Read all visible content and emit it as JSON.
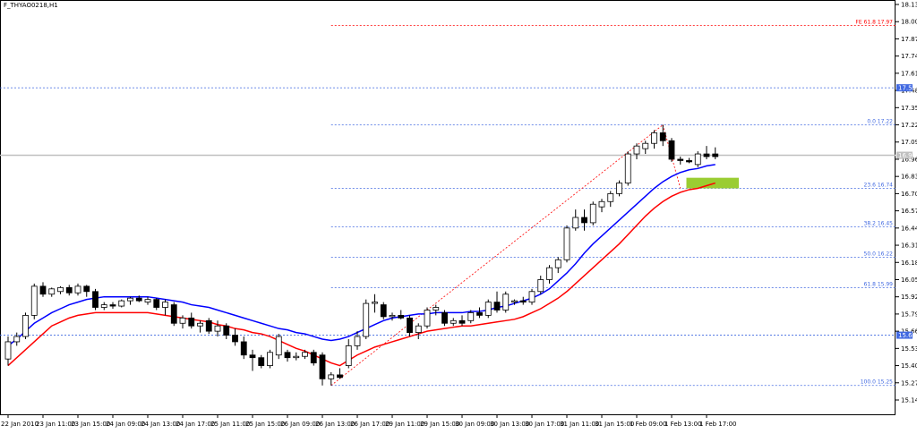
{
  "chart_data": {
    "type": "candlestick",
    "title": "F_THYAO0218,H1",
    "categories": [
      "22 Jan 2010",
      null,
      null,
      null,
      "23 Jan 11:00",
      null,
      null,
      null,
      "23 Jan 15:00",
      null,
      null,
      null,
      "24 Jan 09:00",
      null,
      null,
      null,
      "24 Jan 13:00",
      null,
      null,
      null,
      "24 Jan 17:00",
      null,
      null,
      null,
      "25 Jan 11:00",
      null,
      null,
      null,
      "25 Jan 15:00",
      null,
      null,
      null,
      "26 Jan 09:00",
      null,
      null,
      null,
      "26 Jan 13:00",
      null,
      null,
      null,
      "26 Jan 17:00",
      null,
      null,
      null,
      "29 Jan 11:00",
      null,
      null,
      null,
      "29 Jan 15:00",
      null,
      null,
      null,
      "30 Jan 09:00",
      null,
      null,
      null,
      "30 Jan 13:00",
      null,
      null,
      null,
      "30 Jan 17:00",
      null,
      null,
      null,
      "31 Jan 11:00",
      null,
      null,
      null,
      "31 Jan 15:00",
      null,
      null,
      null,
      "1 Feb 09:00",
      null,
      null,
      null,
      "1 Feb 13:00",
      null,
      null,
      null,
      "1 Feb 17:00",
      null
    ],
    "ohlc": [
      [
        15.45,
        15.62,
        15.4,
        15.58
      ],
      [
        15.58,
        15.65,
        15.55,
        15.62
      ],
      [
        15.62,
        15.8,
        15.6,
        15.78
      ],
      [
        15.78,
        16.02,
        15.75,
        16.0
      ],
      [
        16.0,
        16.03,
        15.92,
        15.94
      ],
      [
        15.94,
        15.99,
        15.92,
        15.98
      ],
      [
        15.96,
        16.0,
        15.94,
        15.99
      ],
      [
        15.99,
        16.01,
        15.93,
        15.95
      ],
      [
        15.95,
        16.02,
        15.93,
        16.0
      ],
      [
        16.0,
        16.01,
        15.92,
        15.96
      ],
      [
        15.96,
        15.98,
        15.82,
        15.84
      ],
      [
        15.84,
        15.88,
        15.82,
        15.86
      ],
      [
        15.86,
        15.88,
        15.83,
        15.85
      ],
      [
        15.85,
        15.9,
        15.84,
        15.89
      ],
      [
        15.89,
        15.92,
        15.86,
        15.91
      ],
      [
        15.91,
        15.93,
        15.88,
        15.89
      ],
      [
        15.88,
        15.92,
        15.86,
        15.9
      ],
      [
        15.9,
        15.91,
        15.82,
        15.84
      ],
      [
        15.84,
        15.9,
        15.78,
        15.88
      ],
      [
        15.86,
        15.88,
        15.7,
        15.72
      ],
      [
        15.72,
        15.78,
        15.68,
        15.76
      ],
      [
        15.76,
        15.8,
        15.68,
        15.7
      ],
      [
        15.7,
        15.74,
        15.65,
        15.72
      ],
      [
        15.74,
        15.76,
        15.64,
        15.66
      ],
      [
        15.66,
        15.74,
        15.62,
        15.7
      ],
      [
        15.7,
        15.72,
        15.6,
        15.63
      ],
      [
        15.63,
        15.68,
        15.55,
        15.58
      ],
      [
        15.58,
        15.62,
        15.45,
        15.48
      ],
      [
        15.48,
        15.52,
        15.36,
        15.46
      ],
      [
        15.46,
        15.48,
        15.38,
        15.4
      ],
      [
        15.4,
        15.52,
        15.38,
        15.5
      ],
      [
        15.48,
        15.64,
        15.45,
        15.62
      ],
      [
        15.5,
        15.52,
        15.43,
        15.46
      ],
      [
        15.46,
        15.5,
        15.44,
        15.47
      ],
      [
        15.47,
        15.52,
        15.45,
        15.5
      ],
      [
        15.5,
        15.52,
        15.4,
        15.42
      ],
      [
        15.48,
        15.5,
        15.25,
        15.3
      ],
      [
        15.3,
        15.35,
        15.25,
        15.33
      ],
      [
        15.33,
        15.38,
        15.3,
        15.31
      ],
      [
        15.4,
        15.6,
        15.38,
        15.55
      ],
      [
        15.55,
        15.66,
        15.52,
        15.62
      ],
      [
        15.62,
        15.9,
        15.6,
        15.87
      ],
      [
        15.87,
        15.94,
        15.8,
        15.88
      ],
      [
        15.86,
        15.88,
        15.75,
        15.77
      ],
      [
        15.77,
        15.8,
        15.74,
        15.78
      ],
      [
        15.78,
        15.82,
        15.75,
        15.76
      ],
      [
        15.76,
        15.78,
        15.62,
        15.65
      ],
      [
        15.65,
        15.72,
        15.6,
        15.7
      ],
      [
        15.7,
        15.84,
        15.68,
        15.82
      ],
      [
        15.82,
        15.86,
        15.78,
        15.84
      ],
      [
        15.8,
        15.82,
        15.7,
        15.72
      ],
      [
        15.72,
        15.76,
        15.7,
        15.74
      ],
      [
        15.74,
        15.78,
        15.7,
        15.72
      ],
      [
        15.74,
        15.82,
        15.72,
        15.8
      ],
      [
        15.8,
        15.84,
        15.76,
        15.78
      ],
      [
        15.78,
        15.9,
        15.76,
        15.88
      ],
      [
        15.88,
        15.96,
        15.8,
        15.82
      ],
      [
        15.82,
        15.96,
        15.8,
        15.94
      ],
      [
        15.88,
        15.9,
        15.86,
        15.89
      ],
      [
        15.89,
        15.92,
        15.86,
        15.88
      ],
      [
        15.88,
        15.98,
        15.86,
        15.96
      ],
      [
        15.96,
        16.08,
        15.94,
        16.05
      ],
      [
        16.05,
        16.16,
        16.02,
        16.14
      ],
      [
        16.14,
        16.22,
        16.1,
        16.2
      ],
      [
        16.2,
        16.46,
        16.18,
        16.44
      ],
      [
        16.44,
        16.58,
        16.42,
        16.52
      ],
      [
        16.52,
        16.58,
        16.42,
        16.48
      ],
      [
        16.48,
        16.64,
        16.46,
        16.62
      ],
      [
        16.6,
        16.66,
        16.56,
        16.64
      ],
      [
        16.64,
        16.72,
        16.6,
        16.7
      ],
      [
        16.7,
        16.8,
        16.68,
        16.78
      ],
      [
        16.78,
        17.02,
        16.76,
        17.0
      ],
      [
        17.0,
        17.08,
        16.96,
        17.06
      ],
      [
        17.04,
        17.1,
        17.0,
        17.08
      ],
      [
        17.08,
        17.18,
        17.04,
        17.16
      ],
      [
        17.16,
        17.22,
        17.06,
        17.1
      ],
      [
        17.1,
        17.12,
        16.94,
        16.96
      ],
      [
        16.96,
        16.98,
        16.92,
        16.95
      ],
      [
        16.95,
        16.97,
        16.93,
        16.94
      ],
      [
        16.92,
        17.02,
        16.9,
        17.0
      ],
      [
        17.0,
        17.06,
        16.96,
        16.98
      ],
      [
        17.0,
        17.05,
        16.96,
        16.98
      ]
    ],
    "series": [
      {
        "color": "#0000ff",
        "values": [
          15.55,
          15.6,
          15.66,
          15.72,
          15.76,
          15.8,
          15.83,
          15.86,
          15.88,
          15.9,
          15.91,
          15.92,
          15.92,
          15.92,
          15.92,
          15.92,
          15.92,
          15.91,
          15.9,
          15.89,
          15.88,
          15.86,
          15.85,
          15.84,
          15.82,
          15.8,
          15.78,
          15.76,
          15.74,
          15.72,
          15.7,
          15.68,
          15.67,
          15.65,
          15.64,
          15.62,
          15.6,
          15.59,
          15.6,
          15.62,
          15.65,
          15.68,
          15.71,
          15.74,
          15.76,
          15.77,
          15.78,
          15.79,
          15.79,
          15.8,
          15.8,
          15.8,
          15.8,
          15.81,
          15.81,
          15.82,
          15.84,
          15.85,
          15.87,
          15.89,
          15.91,
          15.94,
          15.98,
          16.04,
          16.1,
          16.17,
          16.25,
          16.32,
          16.38,
          16.44,
          16.5,
          16.56,
          16.62,
          16.68,
          16.74,
          16.79,
          16.83,
          16.86,
          16.88,
          16.89,
          16.91,
          16.92
        ]
      },
      {
        "color": "#ff0000",
        "values": [
          15.4,
          15.46,
          15.52,
          15.58,
          15.64,
          15.7,
          15.73,
          15.76,
          15.78,
          15.79,
          15.8,
          15.8,
          15.8,
          15.8,
          15.8,
          15.8,
          15.8,
          15.79,
          15.78,
          15.77,
          15.76,
          15.75,
          15.74,
          15.73,
          15.71,
          15.7,
          15.68,
          15.67,
          15.65,
          15.64,
          15.62,
          15.59,
          15.56,
          15.53,
          15.51,
          15.48,
          15.45,
          15.42,
          15.4,
          15.44,
          15.48,
          15.51,
          15.54,
          15.56,
          15.58,
          15.6,
          15.62,
          15.64,
          15.66,
          15.67,
          15.68,
          15.69,
          15.7,
          15.7,
          15.71,
          15.72,
          15.73,
          15.74,
          15.75,
          15.77,
          15.8,
          15.83,
          15.87,
          15.91,
          15.96,
          16.02,
          16.08,
          16.14,
          16.2,
          16.26,
          16.32,
          16.39,
          16.46,
          16.53,
          16.59,
          16.64,
          16.68,
          16.71,
          16.73,
          16.74,
          16.76,
          16.78
        ]
      }
    ],
    "ylim": [
      15.07,
      18.16
    ],
    "yticks": [
      18.13,
      {
        "value": 18.0,
        "label": "18.00"
      },
      17.87,
      17.74,
      17.61,
      17.48,
      17.35,
      17.22,
      17.09,
      16.96,
      16.83,
      {
        "value": 16.7,
        "label": "16.70"
      },
      16.57,
      16.44,
      16.31,
      16.18,
      16.05,
      15.92,
      15.79,
      15.66,
      15.53,
      {
        "value": 15.4,
        "label": "15.40"
      },
      15.27,
      15.14
    ],
    "price_lines": [
      {
        "value": 17.5,
        "label": "17.50",
        "color": "#4169e1"
      },
      {
        "value": 16.99,
        "label": "16.99",
        "color": "#c0c0c0"
      },
      {
        "value": 15.63,
        "label": "15.63",
        "color": "#4169e1"
      }
    ],
    "fibo_levels": [
      {
        "value": 17.97,
        "label": "FE 61.8 17.97",
        "color": "#ff0000"
      },
      {
        "value": 17.22,
        "label": "0.0 17.22",
        "color": "#4169e1"
      },
      {
        "value": 16.74,
        "label": "23.6 16.74",
        "color": "#4169e1"
      },
      {
        "value": 16.45,
        "label": "38.2 16.45",
        "color": "#4169e1"
      },
      {
        "value": 16.22,
        "label": "50.0 16.22",
        "color": "#4169e1"
      },
      {
        "value": 15.99,
        "label": "61.8 15.99",
        "color": "#4169e1"
      },
      {
        "value": 15.25,
        "label": "100.0 15.25",
        "color": "#4169e1"
      }
    ],
    "trendlines": [
      {
        "x": [
          37,
          75
        ],
        "y": [
          15.25,
          17.22
        ],
        "color": "#ff0000"
      },
      {
        "x": [
          75,
          77
        ],
        "y": [
          17.22,
          16.74
        ],
        "color": "#ff0000"
      }
    ],
    "zone": {
      "x": [
        78,
        84
      ],
      "y": [
        16.74,
        16.82
      ],
      "color": "#9acd32"
    }
  }
}
